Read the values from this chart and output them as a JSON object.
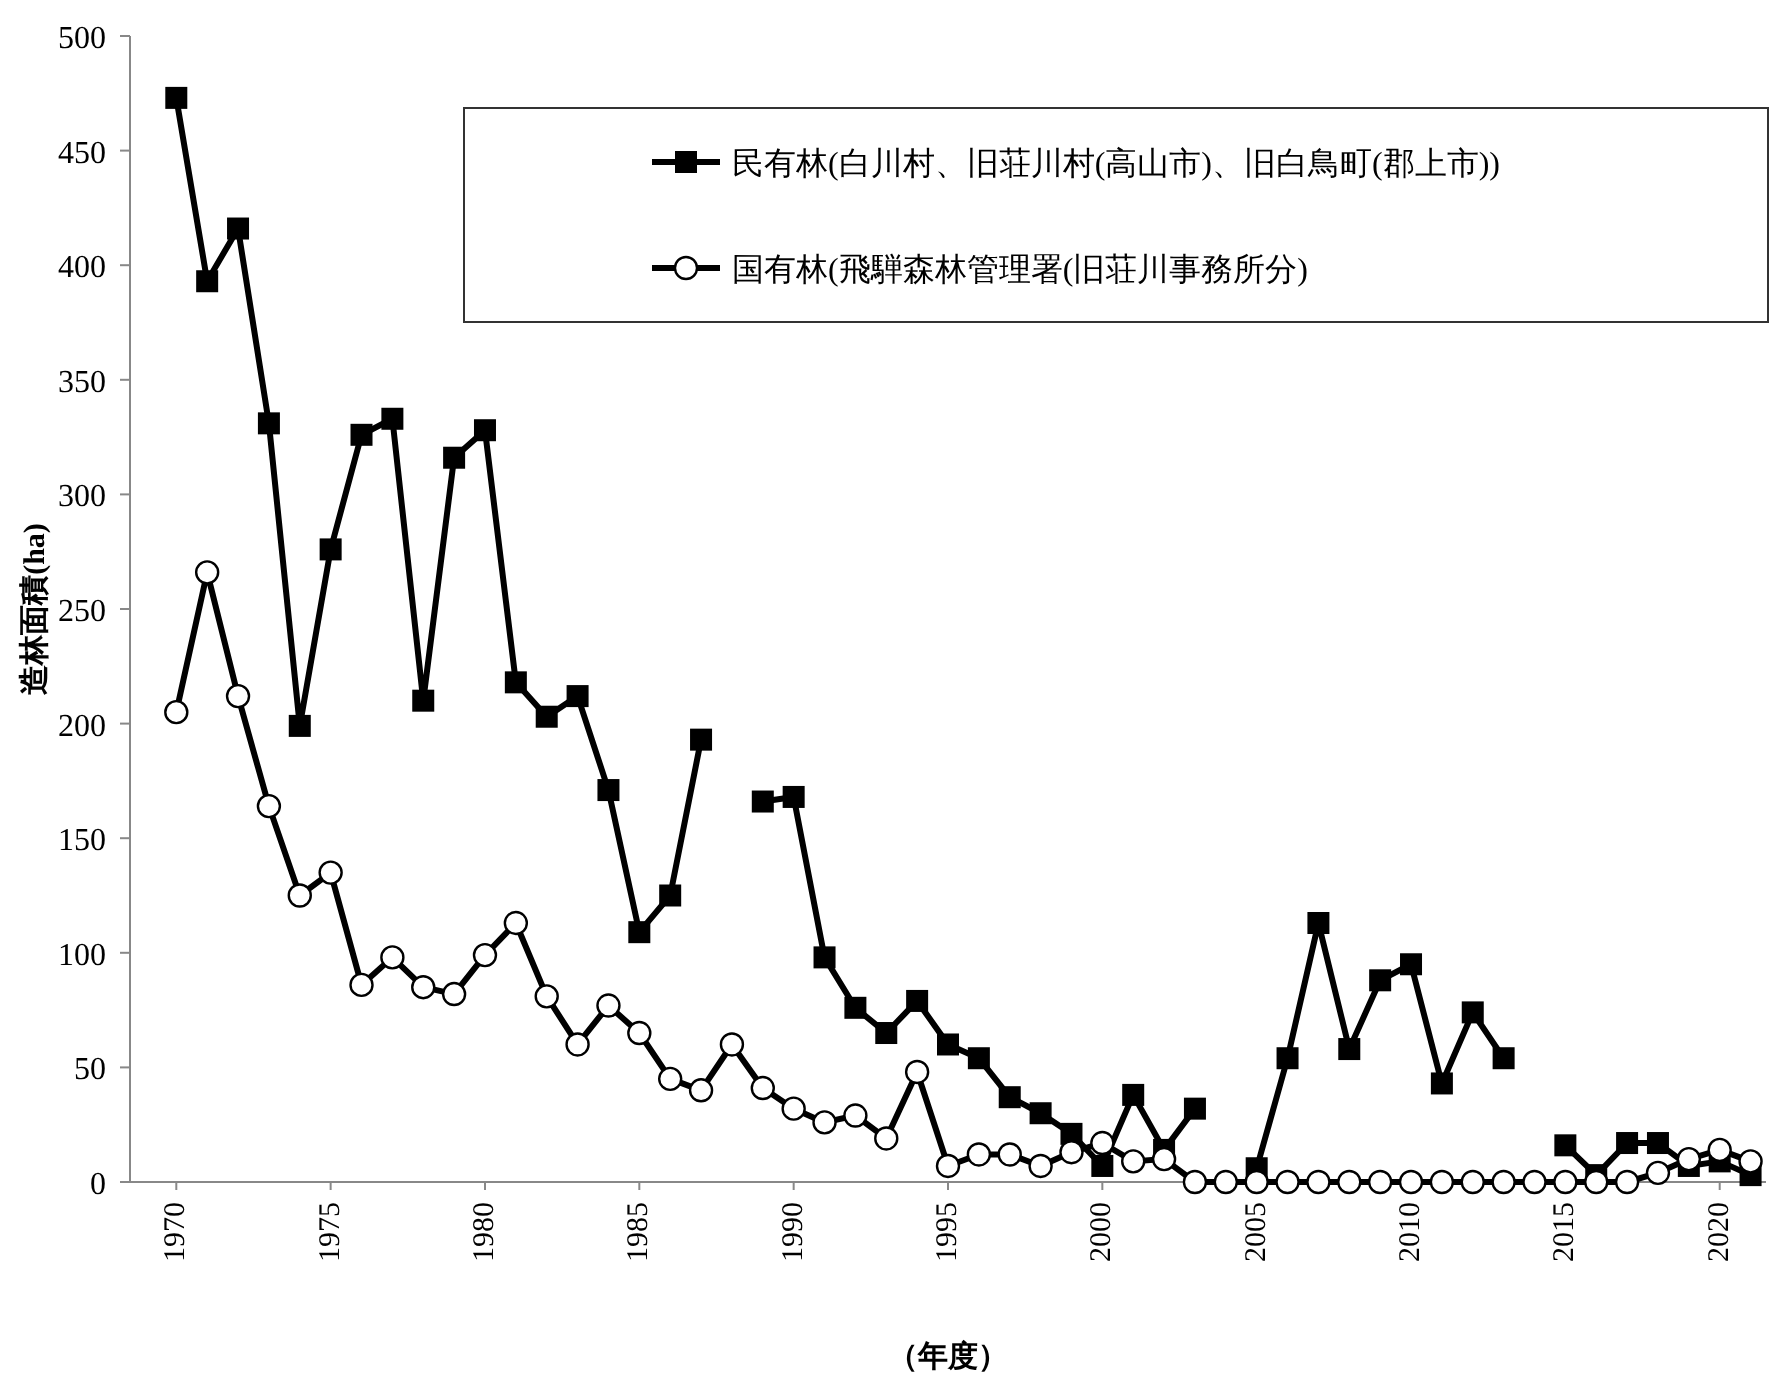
{
  "chart_data": {
    "type": "line",
    "ylabel": "造林面積(ha)",
    "xlabel": "（年度）",
    "x": [
      1970,
      1971,
      1972,
      1973,
      1974,
      1975,
      1976,
      1977,
      1978,
      1979,
      1980,
      1981,
      1982,
      1983,
      1984,
      1985,
      1986,
      1987,
      1988,
      1989,
      1990,
      1991,
      1992,
      1993,
      1994,
      1995,
      1996,
      1997,
      1998,
      1999,
      2000,
      2001,
      2002,
      2003,
      2004,
      2005,
      2006,
      2007,
      2008,
      2009,
      2010,
      2011,
      2012,
      2013,
      2014,
      2015,
      2016,
      2017,
      2018,
      2019,
      2020,
      2021
    ],
    "series": [
      {
        "name": "民有林(白川村、旧荘川村(高山市)、旧白鳥町(郡上市))",
        "color": "#000000",
        "marker": "square",
        "values": [
          473,
          393,
          416,
          331,
          199,
          276,
          326,
          333,
          210,
          316,
          328,
          218,
          203,
          212,
          171,
          109,
          125,
          193,
          null,
          166,
          168,
          98,
          76,
          65,
          79,
          60,
          54,
          37,
          30,
          21,
          7,
          38,
          14,
          32,
          null,
          6,
          54,
          113,
          58,
          88,
          95,
          43,
          74,
          54,
          null,
          16,
          3,
          17,
          17,
          7,
          9,
          3
        ]
      },
      {
        "name": "国有林(飛騨森林管理署(旧荘川事務所分)",
        "color": "#000000",
        "marker": "circle",
        "values": [
          205,
          266,
          212,
          164,
          125,
          135,
          86,
          98,
          85,
          82,
          99,
          113,
          81,
          60,
          77,
          65,
          45,
          40,
          60,
          41,
          32,
          26,
          29,
          19,
          48,
          7,
          12,
          12,
          7,
          13,
          17,
          9,
          10,
          0,
          0,
          0,
          0,
          0,
          0,
          0,
          0,
          0,
          0,
          0,
          0,
          0,
          0,
          0,
          4,
          10,
          14,
          9
        ]
      }
    ],
    "xlim": [
      1968.5,
      2021.5
    ],
    "xticks": [
      1970,
      1975,
      1980,
      1985,
      1990,
      1995,
      2000,
      2005,
      2010,
      2015,
      2020
    ],
    "ylim": [
      0,
      500
    ],
    "yticks": [
      0,
      50,
      100,
      150,
      200,
      250,
      300,
      350,
      400,
      450,
      500
    ],
    "grid": false,
    "legend": "top right",
    "line_style": "solid"
  }
}
